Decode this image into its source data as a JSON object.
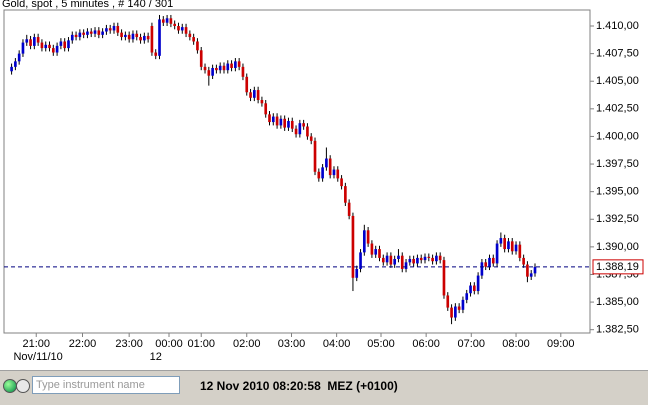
{
  "header": {
    "title": "Gold, spot , 5 minutes , # 140 / 301"
  },
  "chart_data": {
    "type": "candlestick",
    "ohlc": [
      [
        1405.9,
        1406.6,
        1405.6,
        1406.3
      ],
      [
        1406.3,
        1407.1,
        1406.0,
        1406.8
      ],
      [
        1406.8,
        1407.8,
        1406.5,
        1407.5
      ],
      [
        1407.5,
        1408.8,
        1407.2,
        1408.5
      ],
      [
        1408.5,
        1409.2,
        1408.2,
        1408.8
      ],
      [
        1408.8,
        1409.1,
        1407.9,
        1408.2
      ],
      [
        1408.2,
        1409.3,
        1407.9,
        1409.0
      ],
      [
        1409.0,
        1409.3,
        1408.2,
        1408.5
      ],
      [
        1408.5,
        1408.8,
        1407.7,
        1408.0
      ],
      [
        1408.0,
        1408.6,
        1407.7,
        1408.3
      ],
      [
        1408.3,
        1408.6,
        1407.7,
        1408.0
      ],
      [
        1408.0,
        1408.3,
        1407.3,
        1407.6
      ],
      [
        1407.6,
        1408.5,
        1407.3,
        1408.2
      ],
      [
        1408.2,
        1408.9,
        1407.9,
        1408.6
      ],
      [
        1408.6,
        1408.9,
        1407.7,
        1408.0
      ],
      [
        1408.0,
        1409.0,
        1407.7,
        1408.7
      ],
      [
        1408.7,
        1409.5,
        1408.4,
        1409.2
      ],
      [
        1409.2,
        1409.5,
        1408.7,
        1409.0
      ],
      [
        1409.0,
        1409.7,
        1408.7,
        1409.4
      ],
      [
        1409.4,
        1409.7,
        1408.9,
        1409.2
      ],
      [
        1409.2,
        1409.8,
        1408.9,
        1409.5
      ],
      [
        1409.5,
        1409.8,
        1409.0,
        1409.3
      ],
      [
        1409.3,
        1409.9,
        1409.0,
        1409.6
      ],
      [
        1409.6,
        1409.9,
        1408.9,
        1409.2
      ],
      [
        1409.2,
        1409.8,
        1408.9,
        1409.5
      ],
      [
        1409.5,
        1410.1,
        1409.2,
        1409.8
      ],
      [
        1409.8,
        1410.1,
        1409.3,
        1409.6
      ],
      [
        1409.6,
        1410.3,
        1409.3,
        1410.0
      ],
      [
        1410.0,
        1410.3,
        1409.1,
        1409.4
      ],
      [
        1409.4,
        1409.7,
        1408.7,
        1409.0
      ],
      [
        1409.0,
        1409.5,
        1408.7,
        1409.2
      ],
      [
        1409.2,
        1409.5,
        1408.5,
        1408.8
      ],
      [
        1408.8,
        1409.6,
        1408.5,
        1409.3
      ],
      [
        1409.3,
        1409.6,
        1408.7,
        1409.0
      ],
      [
        1409.0,
        1409.3,
        1408.4,
        1408.7
      ],
      [
        1408.7,
        1409.4,
        1408.4,
        1409.1
      ],
      [
        1409.1,
        1409.4,
        1408.5,
        1408.8
      ],
      [
        1410.0,
        1410.3,
        1407.3,
        1407.6
      ],
      [
        1407.6,
        1407.9,
        1407.0,
        1407.3
      ],
      [
        1407.3,
        1411.0,
        1407.0,
        1410.6
      ],
      [
        1410.6,
        1410.9,
        1410.0,
        1410.3
      ],
      [
        1410.3,
        1411.0,
        1410.0,
        1410.7
      ],
      [
        1410.7,
        1411.0,
        1409.9,
        1410.2
      ],
      [
        1410.2,
        1410.5,
        1409.7,
        1410.0
      ],
      [
        1410.0,
        1410.3,
        1409.3,
        1409.6
      ],
      [
        1409.6,
        1410.2,
        1409.3,
        1409.9
      ],
      [
        1409.9,
        1410.2,
        1409.0,
        1409.3
      ],
      [
        1409.3,
        1409.6,
        1408.7,
        1409.0
      ],
      [
        1409.0,
        1409.3,
        1408.3,
        1408.6
      ],
      [
        1408.6,
        1408.9,
        1407.5,
        1407.8
      ],
      [
        1407.8,
        1408.1,
        1406.0,
        1406.3
      ],
      [
        1406.3,
        1406.6,
        1405.7,
        1406.0
      ],
      [
        1406.0,
        1406.3,
        1404.6,
        1405.5
      ],
      [
        1405.5,
        1406.5,
        1405.2,
        1406.2
      ],
      [
        1406.2,
        1406.5,
        1405.7,
        1406.0
      ],
      [
        1406.0,
        1406.7,
        1405.7,
        1406.4
      ],
      [
        1406.4,
        1406.7,
        1405.7,
        1406.0
      ],
      [
        1406.0,
        1406.9,
        1405.7,
        1406.6
      ],
      [
        1406.6,
        1406.9,
        1405.9,
        1406.2
      ],
      [
        1406.2,
        1407.1,
        1405.9,
        1406.8
      ],
      [
        1406.8,
        1407.1,
        1406.0,
        1406.3
      ],
      [
        1406.3,
        1406.6,
        1405.1,
        1405.4
      ],
      [
        1405.4,
        1405.7,
        1403.7,
        1404.0
      ],
      [
        1404.0,
        1404.3,
        1403.2,
        1403.5
      ],
      [
        1403.5,
        1404.5,
        1403.2,
        1404.2
      ],
      [
        1404.2,
        1404.5,
        1403.0,
        1403.3
      ],
      [
        1403.3,
        1403.6,
        1402.7,
        1403.0
      ],
      [
        1403.0,
        1403.3,
        1401.7,
        1402.0
      ],
      [
        1402.0,
        1402.3,
        1401.0,
        1401.3
      ],
      [
        1401.3,
        1402.1,
        1401.0,
        1401.8
      ],
      [
        1401.8,
        1402.1,
        1400.7,
        1401.0
      ],
      [
        1401.0,
        1401.9,
        1400.7,
        1401.6
      ],
      [
        1401.6,
        1401.9,
        1400.5,
        1400.8
      ],
      [
        1400.8,
        1401.7,
        1400.5,
        1401.4
      ],
      [
        1401.4,
        1401.7,
        1400.4,
        1400.7
      ],
      [
        1400.7,
        1401.0,
        1399.9,
        1400.2
      ],
      [
        1400.2,
        1401.5,
        1399.9,
        1401.2
      ],
      [
        1401.2,
        1401.5,
        1400.6,
        1400.9
      ],
      [
        1400.9,
        1401.2,
        1399.7,
        1400.0
      ],
      [
        1400.0,
        1400.3,
        1399.3,
        1399.6
      ],
      [
        1399.6,
        1399.9,
        1396.5,
        1396.8
      ],
      [
        1396.8,
        1397.1,
        1395.9,
        1396.2
      ],
      [
        1396.2,
        1397.5,
        1395.9,
        1397.2
      ],
      [
        1397.2,
        1399.0,
        1396.9,
        1398.0
      ],
      [
        1398.0,
        1398.3,
        1396.2,
        1396.5
      ],
      [
        1396.5,
        1397.3,
        1396.2,
        1397.0
      ],
      [
        1397.0,
        1397.3,
        1395.9,
        1396.2
      ],
      [
        1396.2,
        1396.5,
        1395.2,
        1395.5
      ],
      [
        1395.5,
        1395.8,
        1393.7,
        1394.0
      ],
      [
        1394.0,
        1394.3,
        1392.5,
        1392.8
      ],
      [
        1392.8,
        1393.1,
        1386.0,
        1387.2
      ],
      [
        1387.2,
        1388.3,
        1386.9,
        1388.0
      ],
      [
        1388.0,
        1389.8,
        1387.7,
        1389.5
      ],
      [
        1389.5,
        1392.0,
        1389.2,
        1391.5
      ],
      [
        1391.5,
        1391.8,
        1390.0,
        1390.3
      ],
      [
        1390.3,
        1390.6,
        1389.0,
        1389.3
      ],
      [
        1389.3,
        1390.1,
        1389.0,
        1389.8
      ],
      [
        1389.8,
        1390.1,
        1388.7,
        1389.0
      ],
      [
        1389.0,
        1389.3,
        1388.3,
        1388.6
      ],
      [
        1388.6,
        1389.5,
        1388.3,
        1389.2
      ],
      [
        1389.2,
        1389.5,
        1388.1,
        1388.4
      ],
      [
        1388.4,
        1389.2,
        1388.1,
        1388.9
      ],
      [
        1388.9,
        1389.8,
        1388.6,
        1389.2
      ],
      [
        1389.2,
        1389.5,
        1387.7,
        1388.0
      ],
      [
        1388.0,
        1388.9,
        1387.7,
        1388.6
      ],
      [
        1388.6,
        1389.2,
        1388.3,
        1388.9
      ],
      [
        1388.9,
        1389.2,
        1388.2,
        1388.5
      ],
      [
        1388.5,
        1389.3,
        1388.2,
        1389.0
      ],
      [
        1389.0,
        1389.3,
        1388.5,
        1388.8
      ],
      [
        1388.8,
        1389.4,
        1388.5,
        1389.1
      ],
      [
        1389.1,
        1389.4,
        1388.7,
        1389.0
      ],
      [
        1389.0,
        1389.3,
        1388.4,
        1388.7
      ],
      [
        1388.7,
        1389.5,
        1388.4,
        1389.2
      ],
      [
        1389.2,
        1389.5,
        1388.5,
        1388.8
      ],
      [
        1388.8,
        1389.1,
        1385.3,
        1385.6
      ],
      [
        1385.6,
        1385.9,
        1384.2,
        1384.5
      ],
      [
        1384.5,
        1384.8,
        1383.0,
        1383.6
      ],
      [
        1383.6,
        1384.9,
        1383.3,
        1384.6
      ],
      [
        1384.6,
        1384.9,
        1384.0,
        1384.3
      ],
      [
        1384.3,
        1385.5,
        1384.0,
        1385.2
      ],
      [
        1385.2,
        1386.1,
        1384.9,
        1385.8
      ],
      [
        1385.8,
        1386.8,
        1385.5,
        1386.5
      ],
      [
        1386.5,
        1386.8,
        1385.7,
        1386.0
      ],
      [
        1386.0,
        1387.7,
        1385.7,
        1387.4
      ],
      [
        1387.4,
        1388.9,
        1387.1,
        1388.6
      ],
      [
        1388.6,
        1388.9,
        1387.9,
        1388.2
      ],
      [
        1388.2,
        1389.3,
        1387.9,
        1389.0
      ],
      [
        1389.0,
        1389.3,
        1388.2,
        1388.5
      ],
      [
        1388.5,
        1390.6,
        1388.2,
        1390.3
      ],
      [
        1390.3,
        1391.3,
        1390.0,
        1390.8
      ],
      [
        1390.8,
        1391.1,
        1389.5,
        1389.8
      ],
      [
        1389.8,
        1390.8,
        1389.5,
        1390.5
      ],
      [
        1390.5,
        1390.8,
        1389.3,
        1389.6
      ],
      [
        1389.6,
        1390.5,
        1389.3,
        1390.2
      ],
      [
        1390.2,
        1390.5,
        1388.7,
        1389.0
      ],
      [
        1389.0,
        1389.3,
        1388.1,
        1388.4
      ],
      [
        1388.4,
        1388.7,
        1386.8,
        1387.3
      ],
      [
        1387.3,
        1387.9,
        1387.0,
        1387.6
      ],
      [
        1387.6,
        1388.5,
        1387.3,
        1388.19
      ]
    ],
    "up_color": "#0000cc",
    "down_color": "#cc0000",
    "xlim": [
      -2,
      152.5
    ],
    "ylim": [
      1382.2,
      1411.45
    ],
    "yticks": [
      {
        "value": 1382.5,
        "label": "1.382,50"
      },
      {
        "value": 1385,
        "label": "1.385,00"
      },
      {
        "value": 1387.5,
        "label": "1.387,50"
      },
      {
        "value": 1390,
        "label": "1.390,00"
      },
      {
        "value": 1392.5,
        "label": "1.392,50"
      },
      {
        "value": 1395,
        "label": "1.395,00"
      },
      {
        "value": 1397.5,
        "label": "1.397,50"
      },
      {
        "value": 1400,
        "label": "1.400,00"
      },
      {
        "value": 1402.5,
        "label": "1.402,50"
      },
      {
        "value": 1405,
        "label": "1.405,00"
      },
      {
        "value": 1407.5,
        "label": "1.407,50"
      },
      {
        "value": 1410,
        "label": "1.410,00"
      }
    ],
    "xticks": [
      {
        "value": 6.5,
        "label": "21:00"
      },
      {
        "value": 18.7,
        "label": "22:00"
      },
      {
        "value": 31,
        "label": "23:00"
      },
      {
        "value": 41.5,
        "label": "00:00"
      },
      {
        "value": 50,
        "label": "01:00"
      },
      {
        "value": 62,
        "label": "02:00"
      },
      {
        "value": 73.8,
        "label": "03:00"
      },
      {
        "value": 85.7,
        "label": "04:00"
      },
      {
        "value": 97.4,
        "label": "05:00"
      },
      {
        "value": 109.3,
        "label": "06:00"
      },
      {
        "value": 121.2,
        "label": "07:00"
      },
      {
        "value": 133,
        "label": "08:00"
      },
      {
        "value": 144.8,
        "label": "09:00"
      }
    ],
    "date_labels": [
      {
        "value": 7,
        "label": "Nov/11/10"
      },
      {
        "value": 38,
        "label": "12"
      }
    ],
    "last": {
      "value": 1388.19,
      "label": "1.388,19",
      "color": "#000080"
    }
  },
  "footer": {
    "placeholder": "Type instrument name",
    "status": "12 Nov 2010 08:20:58  MEZ (+0100)"
  }
}
